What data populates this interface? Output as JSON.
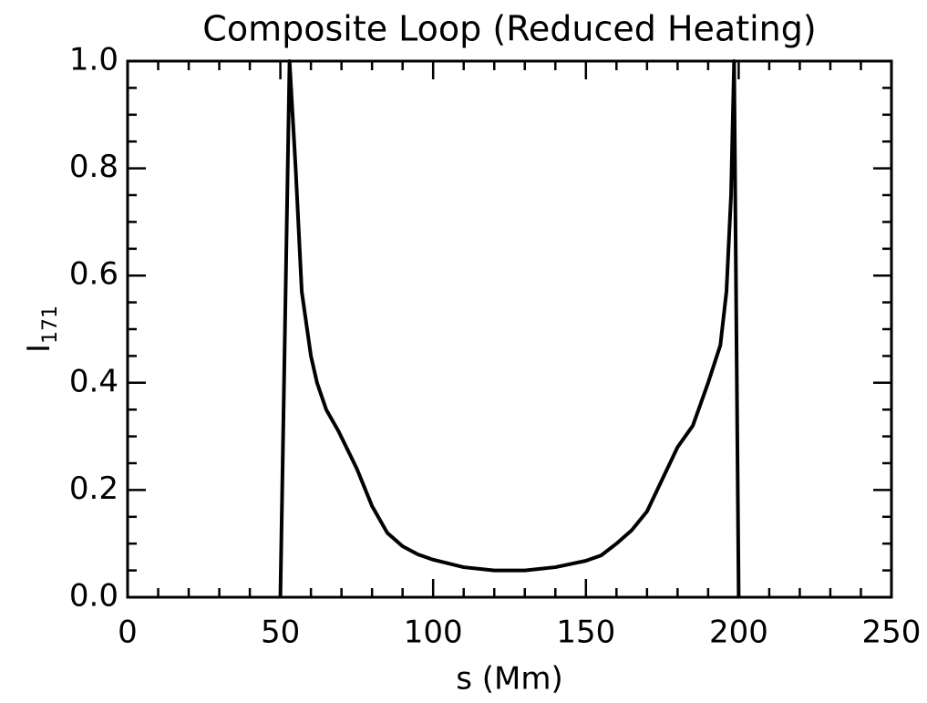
{
  "chart_data": {
    "type": "line",
    "title": "Composite Loop (Reduced Heating)",
    "x_label": "s (Mm)",
    "y_label": "I",
    "y_label_subscript": "171",
    "x": [
      50,
      53,
      55,
      57,
      60,
      62,
      65,
      69,
      75,
      80,
      85,
      90,
      95,
      100,
      110,
      120,
      130,
      140,
      150,
      155,
      160,
      165,
      170,
      175,
      180,
      185,
      190,
      194,
      196,
      197.5,
      198.5,
      200
    ],
    "series": [
      {
        "color": "#000000",
        "values": [
          0.0,
          1.0,
          0.8,
          0.57,
          0.45,
          0.4,
          0.35,
          0.31,
          0.24,
          0.17,
          0.12,
          0.095,
          0.08,
          0.07,
          0.056,
          0.05,
          0.05,
          0.056,
          0.068,
          0.078,
          0.1,
          0.125,
          0.16,
          0.22,
          0.28,
          0.32,
          0.4,
          0.47,
          0.57,
          0.75,
          1.0,
          0.0
        ]
      }
    ],
    "xlim": [
      0,
      250
    ],
    "ylim": [
      0,
      1
    ],
    "xticks": [
      0,
      50,
      100,
      150,
      200,
      250
    ],
    "yticks": [
      {
        "value": 0,
        "label": "0.0"
      },
      0.2,
      0.4,
      0.6,
      0.8,
      {
        "value": 1,
        "label": "1.0"
      }
    ],
    "x_minor_ticks": [
      10,
      20,
      30,
      40,
      60,
      70,
      80,
      90,
      110,
      120,
      130,
      140,
      160,
      170,
      180,
      190,
      210,
      220,
      230,
      240
    ],
    "y_minor_ticks": [
      0.05,
      0.1,
      0.15,
      0.25,
      0.3,
      0.35,
      0.45,
      0.5,
      0.55,
      0.65,
      0.7,
      0.75,
      0.85,
      0.9,
      0.95
    ],
    "grid": false
  }
}
